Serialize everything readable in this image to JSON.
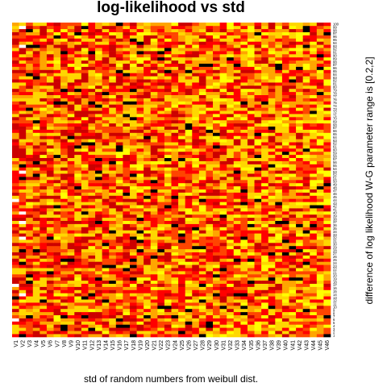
{
  "chart_data": {
    "type": "heatmap",
    "title": "log-likelihood vs std",
    "xlabel": "std of random numbers from weibull dist.",
    "ylabel": "difference of log likelihood W-G parameter range is [0.2,2]",
    "columns": [
      "V1",
      "V2",
      "V3",
      "V4",
      "V5",
      "V6",
      "V7",
      "V8",
      "V9",
      "V10",
      "V11",
      "V12",
      "V13",
      "V14",
      "V15",
      "V16",
      "V17",
      "V18",
      "V19",
      "V20",
      "V21",
      "V22",
      "V23",
      "V24",
      "V25",
      "V26",
      "V27",
      "V28",
      "V29",
      "V30",
      "V31",
      "V32",
      "V33",
      "V34",
      "V35",
      "V36",
      "V37",
      "V38",
      "V39",
      "V40",
      "V41",
      "V42",
      "V43",
      "V44",
      "V45",
      "V46"
    ],
    "row_count": 100,
    "row_labels_range": [
      1,
      100
    ],
    "color_scale": [
      "#ffffff",
      "#ffff80",
      "#ffff00",
      "#ffd700",
      "#ffa500",
      "#ff4500",
      "#ff0000",
      "#cc0000",
      "#000000"
    ],
    "grid": false
  }
}
